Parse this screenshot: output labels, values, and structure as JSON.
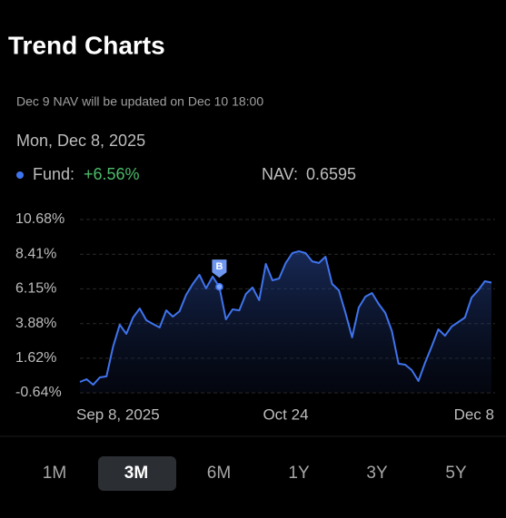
{
  "header": {
    "title": "Trend Charts",
    "notice": "Dec 9 NAV will be updated on Dec 10 18:00",
    "date": "Mon, Dec 8, 2025"
  },
  "summary": {
    "fund_label": "Fund:",
    "fund_change": "+6.56%",
    "nav_label": "NAV:",
    "nav_value": "0.6595"
  },
  "chart_data": {
    "type": "line",
    "categories": [
      "Sep 8, 2025",
      null,
      null,
      null,
      null,
      null,
      null,
      null,
      null,
      null,
      null,
      null,
      null,
      null,
      null,
      null,
      null,
      null,
      null,
      null,
      null,
      null,
      null,
      null,
      null,
      null,
      null,
      null,
      null,
      null,
      null,
      "Oct 24",
      null,
      null,
      null,
      null,
      null,
      null,
      null,
      null,
      null,
      null,
      null,
      null,
      null,
      null,
      null,
      null,
      null,
      null,
      null,
      null,
      null,
      null,
      null,
      null,
      null,
      null,
      null,
      null,
      null,
      null,
      "Dec 8"
    ],
    "series": [
      {
        "name": "Fund",
        "color": "#3f74ee",
        "values": [
          0.07,
          0.25,
          -0.11,
          0.37,
          0.43,
          2.38,
          3.81,
          3.21,
          4.28,
          4.87,
          4.1,
          3.86,
          3.63,
          4.75,
          4.34,
          4.69,
          5.76,
          6.47,
          7.07,
          6.18,
          6.95,
          6.29,
          4.16,
          4.81,
          4.75,
          5.82,
          6.24,
          5.41,
          7.78,
          6.71,
          6.83,
          7.84,
          8.49,
          8.61,
          8.49,
          7.95,
          7.84,
          8.25,
          6.47,
          6.06,
          4.58,
          2.98,
          4.93,
          5.64,
          5.88,
          5.17,
          4.58,
          3.39,
          1.26,
          1.2,
          0.84,
          0.13,
          1.32,
          2.38,
          3.51,
          3.09,
          3.69,
          3.98,
          4.28,
          5.58,
          6.06,
          6.65,
          6.56
        ]
      }
    ],
    "marker_label": "B",
    "ylim": [
      -0.64,
      10.68
    ],
    "yticks": [
      {
        "value": 10.68,
        "label": "10.68%"
      },
      {
        "value": 8.41,
        "label": "8.41%"
      },
      {
        "value": 6.15,
        "label": "6.15%"
      },
      {
        "value": 3.88,
        "label": "3.88%"
      },
      {
        "value": 1.62,
        "label": "1.62%"
      },
      {
        "value": -0.64,
        "label": "-0.64%"
      }
    ],
    "grid": true
  },
  "tabs": [
    "1M",
    "3M",
    "6M",
    "1Y",
    "3Y",
    "5Y"
  ]
}
